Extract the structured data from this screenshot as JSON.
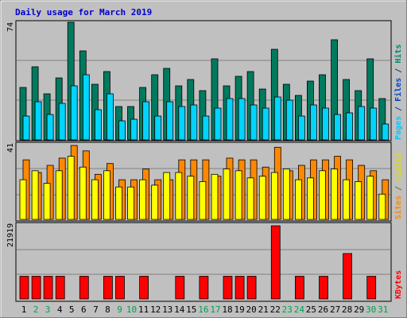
{
  "chart_data": [
    {
      "type": "bar",
      "title": "Daily usage for March 2019",
      "ymax_label": "74",
      "ylabel_parts": [
        {
          "text": "Pages",
          "color": "#00c8ff"
        },
        {
          "text": " / ",
          "color": "#004488"
        },
        {
          "text": "Files",
          "color": "#0044cc"
        },
        {
          "text": " / ",
          "color": "#004488"
        },
        {
          "text": "Hits",
          "color": "#008a6e"
        }
      ],
      "categories": [
        "1",
        "2",
        "3",
        "4",
        "5",
        "6",
        "7",
        "8",
        "9",
        "10",
        "11",
        "12",
        "13",
        "14",
        "15",
        "16",
        "17",
        "18",
        "19",
        "20",
        "21",
        "22",
        "23",
        "24",
        "25",
        "26",
        "27",
        "28",
        "29",
        "30",
        "31"
      ],
      "weekend_days": [
        "2",
        "3",
        "9",
        "10",
        "16",
        "17",
        "23",
        "24",
        "30",
        "31"
      ],
      "ylim": [
        0,
        74
      ],
      "series": [
        {
          "name": "Hits",
          "color": "#007a5e",
          "values": [
            33,
            46,
            29,
            39,
            74,
            56,
            35,
            43,
            21,
            21,
            33,
            41,
            45,
            34,
            38,
            31,
            51,
            34,
            40,
            43,
            32,
            57,
            35,
            28,
            37,
            41,
            63,
            38,
            31,
            51,
            26
          ]
        },
        {
          "name": "Files",
          "color": "#0000ff",
          "values": [
            0,
            0,
            0,
            0,
            0,
            0,
            0,
            0,
            0,
            0,
            0,
            0,
            0,
            0,
            0,
            0,
            0,
            0,
            0,
            0,
            0,
            0,
            0,
            0,
            0,
            0,
            0,
            0,
            0,
            0,
            0
          ]
        },
        {
          "name": "Pages",
          "color": "#00d4ff",
          "values": [
            15,
            24,
            16,
            23,
            34,
            41,
            19,
            29,
            12,
            13,
            24,
            15,
            24,
            21,
            22,
            15,
            20,
            26,
            26,
            22,
            20,
            27,
            25,
            15,
            22,
            20,
            16,
            17,
            21,
            20,
            10
          ]
        }
      ]
    },
    {
      "type": "bar",
      "ymax_label": "41",
      "ylabel_parts": [
        {
          "text": "Sites",
          "color": "#ff8800"
        },
        {
          "text": " / ",
          "color": "#886600"
        },
        {
          "text": "Visits",
          "color": "#dddd00"
        }
      ],
      "ylim": [
        0,
        41
      ],
      "series": [
        {
          "name": "Visits",
          "color": "#ffff00",
          "values": [
            22,
            27,
            20,
            27,
            35,
            29,
            22,
            27,
            18,
            18,
            22,
            19,
            26,
            26,
            24,
            21,
            25,
            28,
            27,
            23,
            24,
            26,
            28,
            22,
            23,
            27,
            28,
            22,
            21,
            24,
            14
          ]
        },
        {
          "name": "Sites",
          "color": "#ff8800",
          "values": [
            33,
            26,
            30,
            34,
            41,
            38,
            25,
            31,
            22,
            22,
            28,
            22,
            22,
            33,
            33,
            33,
            24,
            34,
            33,
            33,
            29,
            40,
            27,
            30,
            33,
            33,
            35,
            33,
            30,
            27,
            22
          ]
        }
      ]
    },
    {
      "type": "bar",
      "ymax_label": "21919",
      "ylabel_parts": [
        {
          "text": "KBytes",
          "color": "#ff0000"
        }
      ],
      "ylim": [
        0,
        21919
      ],
      "series": [
        {
          "name": "KBytes",
          "color": "#ff0000",
          "values": [
            6800,
            6800,
            6800,
            6800,
            0,
            6800,
            0,
            6800,
            6800,
            0,
            6800,
            0,
            0,
            6800,
            0,
            6800,
            0,
            6800,
            6800,
            6800,
            0,
            21919,
            0,
            6800,
            0,
            6800,
            0,
            13600,
            0,
            6800,
            0
          ]
        }
      ]
    }
  ]
}
